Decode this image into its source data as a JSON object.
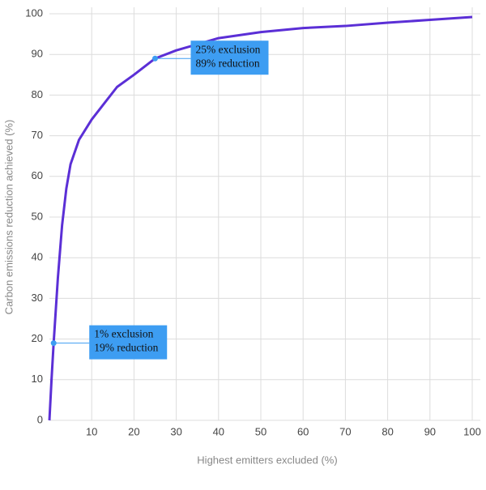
{
  "chart_data": {
    "type": "line",
    "x_label": "Highest emitters excluded (%)",
    "y_label": "Carbon emissions reduction achieved (%)",
    "x": [
      0,
      0.5,
      1,
      2,
      3,
      4,
      5,
      7,
      10,
      13,
      16,
      20,
      25,
      30,
      40,
      50,
      60,
      70,
      80,
      90,
      100
    ],
    "values": [
      0,
      10,
      19,
      35,
      48,
      57,
      63,
      69,
      74,
      78,
      82,
      85,
      89,
      91,
      94,
      95.5,
      96.5,
      97,
      97.8,
      98.5,
      99.2
    ],
    "color": "#5b2fd6",
    "xlim": [
      0,
      100
    ],
    "xticks": [
      10,
      20,
      30,
      40,
      50,
      60,
      70,
      80,
      90,
      100
    ],
    "ylim": [
      0,
      100
    ],
    "yticks": [
      0,
      10,
      20,
      30,
      40,
      50,
      60,
      70,
      80,
      90,
      100
    ],
    "grid": true,
    "annotation_color": "#3d9df2",
    "annotations": [
      {
        "x": 25,
        "y": 89,
        "lines": [
          "25% exclusion",
          "89% reduction"
        ]
      },
      {
        "x": 1,
        "y": 19,
        "lines": [
          "1% exclusion",
          "19% reduction"
        ]
      }
    ]
  }
}
